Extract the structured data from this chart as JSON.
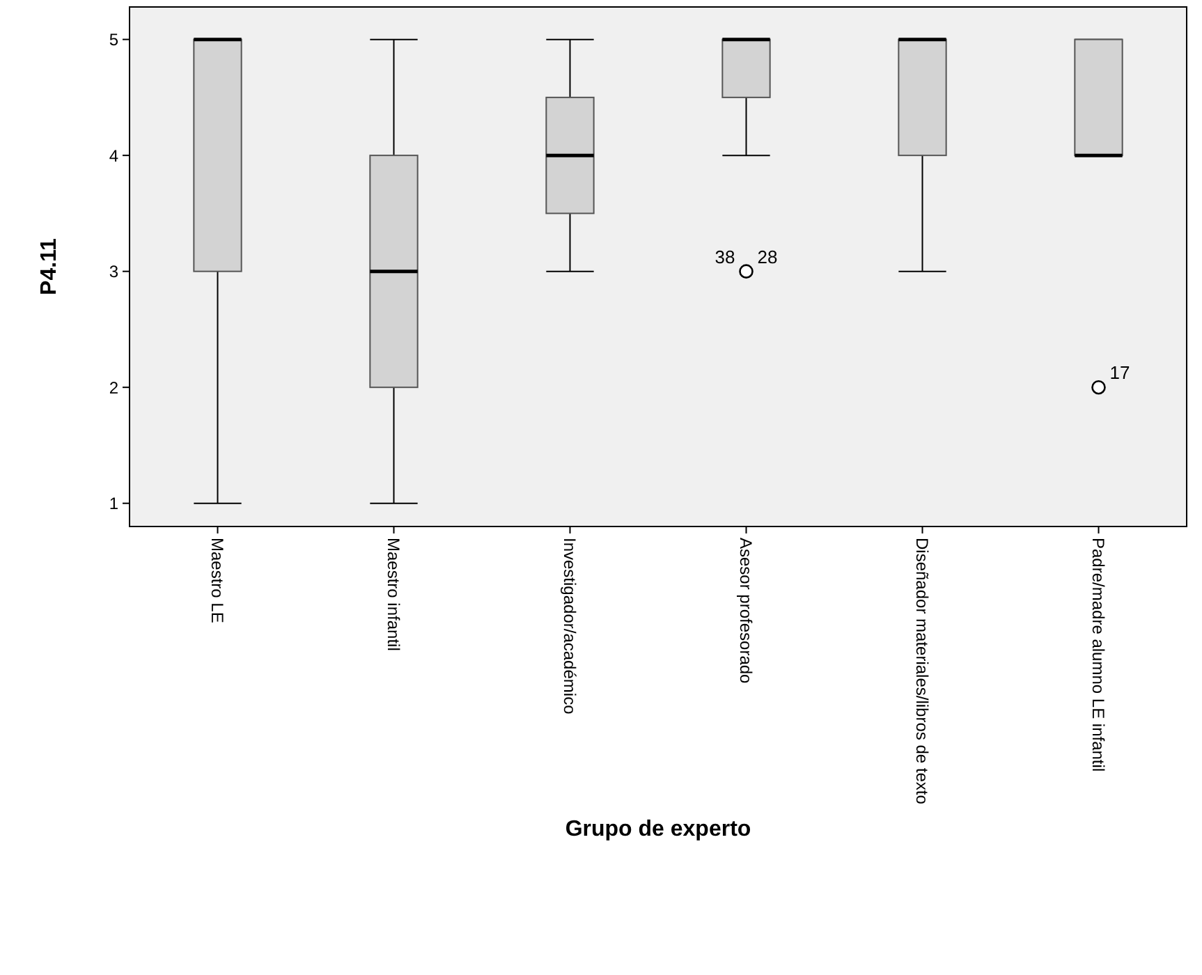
{
  "chart_data": {
    "type": "box",
    "xlabel": "Grupo de experto",
    "ylabel": "P4.11",
    "categories": [
      "Maestro LE",
      "Maestro infantil",
      "Investigador/académico",
      "Asesor profesorado",
      "Diseñador materiales/libros de texto",
      "Padre/madre alumno LE infantil"
    ],
    "color": "#d3d3d3",
    "boxes": [
      {
        "low": 1,
        "q1": 3,
        "median": 5,
        "q3": 5,
        "high": 5
      },
      {
        "low": 1,
        "q1": 2,
        "median": 3,
        "q3": 4,
        "high": 5
      },
      {
        "low": 3,
        "q1": 3.5,
        "median": 4,
        "q3": 4.5,
        "high": 5
      },
      {
        "low": 4,
        "q1": 4.5,
        "median": 5,
        "q3": 5,
        "high": 5,
        "outliers": [
          3
        ]
      },
      {
        "low": 3,
        "q1": 4,
        "median": 5,
        "q3": 5,
        "high": 5
      },
      {
        "low": 4,
        "q1": 4,
        "median": 4,
        "q3": 5,
        "high": 5,
        "outliers": [
          2
        ]
      }
    ],
    "annotations": [
      "38",
      "28",
      "17"
    ],
    "ylim": [
      0.8,
      5.28
    ],
    "yticks": [
      1,
      2,
      3,
      4,
      5
    ],
    "grid": false
  }
}
